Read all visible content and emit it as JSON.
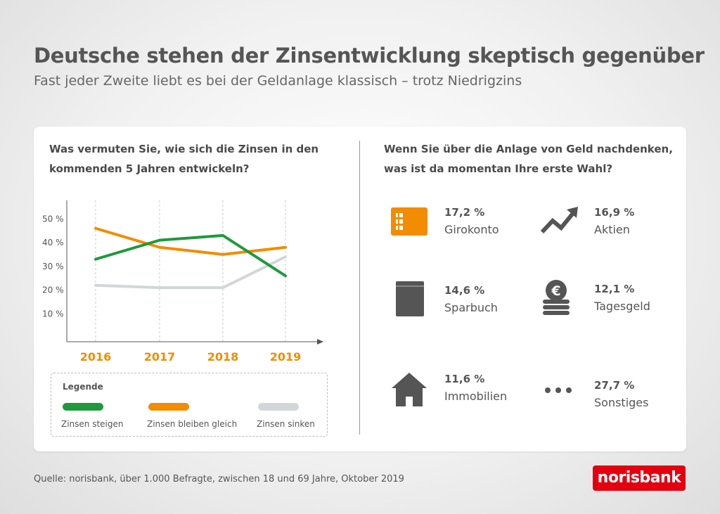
{
  "title": "Deutsche stehen der Zinsentwicklung skeptisch gegenüber",
  "subtitle": "Fast jeder Zweite liebt es bei der Geldanlage klassisch – trotz Niedrigzins",
  "left_question": "Was vermuten Sie, wie sich die Zinsen in den kommenden 5 Jahren entwickeln?",
  "right_question": "Wenn Sie über die Anlage von Geld nachdenken, was ist da momentan Ihre erste Wahl?",
  "legend_title": "Legende",
  "chart_data": [
    {
      "type": "line",
      "x": [
        "2016",
        "2017",
        "2018",
        "2019"
      ],
      "y_ticks": [
        "10 %",
        "20 %",
        "30 %",
        "40 %",
        "50 %"
      ],
      "ylim": [
        0,
        55
      ],
      "grid": "vertical-dashed",
      "series": [
        {
          "name": "Zinsen steigen",
          "color": "#1e9a3c",
          "values": [
            33,
            41,
            43,
            26
          ]
        },
        {
          "name": "Zinsen bleiben gleich",
          "color": "#f28c00",
          "values": [
            46,
            38,
            35,
            38
          ]
        },
        {
          "name": "Zinsen sinken",
          "color": "#d3d6d9",
          "values": [
            22,
            21,
            21,
            34
          ]
        }
      ]
    },
    {
      "type": "table",
      "items": [
        {
          "value": "17,2 %",
          "label": "Girokonto",
          "icon": "card-icon"
        },
        {
          "value": "16,9 %",
          "label": "Aktien",
          "icon": "trend-up-icon"
        },
        {
          "value": "14,6 %",
          "label": "Sparbuch",
          "icon": "book-icon"
        },
        {
          "value": "12,1 %",
          "label": "Tagesgeld",
          "icon": "euro-coins-icon"
        },
        {
          "value": "11,6 %",
          "label": "Immobilien",
          "icon": "house-icon"
        },
        {
          "value": "27,7 %",
          "label": "Sonstiges",
          "icon": "dots-icon"
        }
      ]
    }
  ],
  "source": "Quelle: norisbank, über 1.000 Befragte, zwischen 18 und 69 Jahre, Oktober 2019",
  "logo_text": "norisbank",
  "colors": {
    "accent": "#f28c00",
    "icon": "#555555",
    "brand": "#e3000f"
  }
}
